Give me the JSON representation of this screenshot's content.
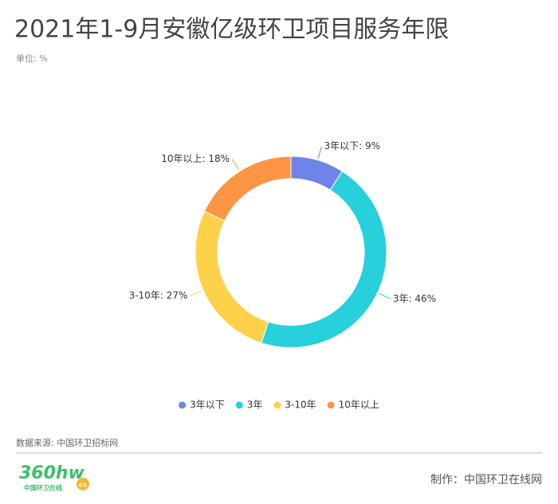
{
  "chart_data": {
    "type": "donut",
    "title": "2021年1-9月安徽亿级环卫项目服务年限",
    "subtitle": "单位: %",
    "categories": [
      "3年以下",
      "3年",
      "3-10年",
      "10年以上"
    ],
    "values": [
      9,
      46,
      27,
      18
    ],
    "value_labels": [
      "3年以下: 9%",
      "3年: 46%",
      "3-10年: 27%",
      "10年以上: 18%"
    ],
    "colors": [
      "#6e84e8",
      "#27d0db",
      "#fdd14a",
      "#fd9545"
    ],
    "legend": "bottom",
    "source": "数据来源: 中国环卫招标网",
    "credit": "制作：中国环卫在线网",
    "logo": {
      "text": "360hw",
      "sub": "中国环卫在线",
      "badge": "cn"
    }
  }
}
